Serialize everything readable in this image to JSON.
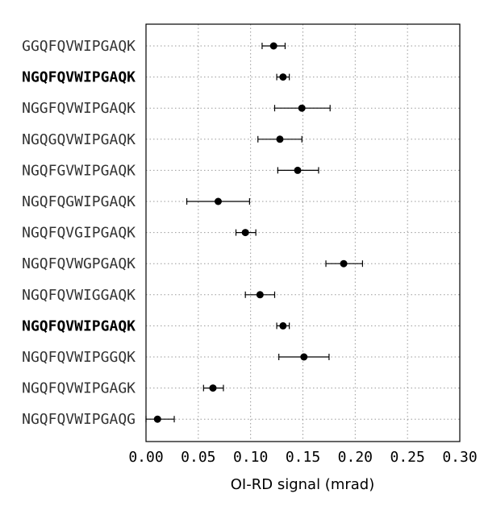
{
  "chart_data": {
    "type": "scatter",
    "orientation": "horizontal",
    "xlabel": "OI-RD signal (mrad)",
    "ylabel": "",
    "xlim": [
      0.0,
      0.3
    ],
    "xticks": [
      "0.00",
      "0.05",
      "0.10",
      "0.15",
      "0.20",
      "0.25",
      "0.30"
    ],
    "grid": true,
    "categories": [
      "GGQFQVWIPGAQK",
      "NGQFQVWIPGAQK",
      "NGGFQVWIPGAQK",
      "NGQGQVWIPGAQK",
      "NGQFGVWIPGAQK",
      "NGQFQGWIPGAQK",
      "NGQFQVGIPGAQK",
      "NGQFQVWGPGAQK",
      "NGQFQVWIGGAQK",
      "NGQFQVWIPGAQK",
      "NGQFQVWIPGGQK",
      "NGQFQVWIPGAGK",
      "NGQFQVWIPGAQG"
    ],
    "bold_categories": [
      1,
      9
    ],
    "values": [
      0.122,
      0.131,
      0.149,
      0.128,
      0.145,
      0.069,
      0.095,
      0.189,
      0.109,
      0.131,
      0.151,
      0.064,
      0.011
    ],
    "err_low": [
      0.111,
      0.125,
      0.123,
      0.107,
      0.126,
      0.039,
      0.086,
      0.172,
      0.095,
      0.125,
      0.127,
      0.055,
      0.0
    ],
    "err_high": [
      0.133,
      0.137,
      0.176,
      0.149,
      0.165,
      0.099,
      0.105,
      0.207,
      0.123,
      0.137,
      0.175,
      0.074,
      0.027
    ],
    "marker_color": "#000000"
  }
}
